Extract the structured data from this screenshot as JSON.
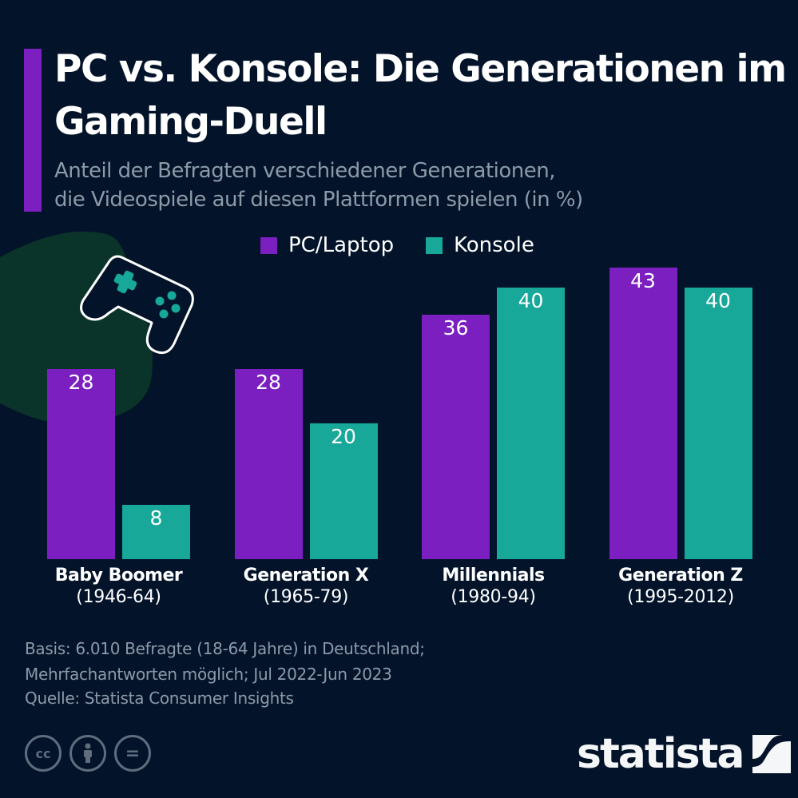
{
  "header": {
    "title": "PC vs. Konsole: Die Generationen im Gaming-Duell",
    "subtitle_line1": "Anteil der Befragten verschiedener Generationen,",
    "subtitle_line2": "die Videospiele auf diesen Plattformen spielen (in %)"
  },
  "colors": {
    "background": "#03132a",
    "pc": "#7b1fc1",
    "console": "#18a899",
    "blob": "#0a3329",
    "muted_text": "#8d9aa8"
  },
  "chart_data": {
    "type": "bar",
    "title": "PC vs. Konsole: Die Generationen im Gaming-Duell",
    "subtitle": "Anteil der Befragten verschiedener Generationen, die Videospiele auf diesen Plattformen spielen (in %)",
    "xlabel": "",
    "ylabel": "in %",
    "ylim": [
      0,
      45
    ],
    "grid": false,
    "legend_position": "top-center",
    "categories": [
      "Baby Boomer",
      "Generation X",
      "Millennials",
      "Generation Z"
    ],
    "category_years": [
      "(1946-64)",
      "(1965-79)",
      "(1980-94)",
      "(1995-2012)"
    ],
    "series": [
      {
        "name": "PC/Laptop",
        "color": "#7b1fc1",
        "values": [
          28,
          28,
          36,
          43
        ]
      },
      {
        "name": "Konsole",
        "color": "#18a899",
        "values": [
          8,
          20,
          40,
          40
        ]
      }
    ]
  },
  "footer": {
    "notes_line1": "Basis: 6.010 Befragte (18-64 Jahre) in Deutschland;",
    "notes_line2": "Mehrfachantworten möglich; Jul 2022-Jun 2023",
    "source": "Quelle: Statista Consumer Insights",
    "license_icons": [
      "cc-icon",
      "attribution-icon",
      "no-derivatives-icon"
    ],
    "cc_glyph": "cc",
    "nd_glyph": "=",
    "brand": "statista"
  }
}
